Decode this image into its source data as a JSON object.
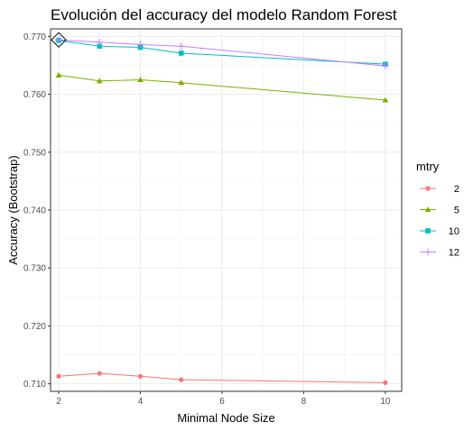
{
  "chart_data": {
    "type": "line",
    "title": "Evolución del accuracy del modelo Random Forest",
    "xlabel": "Minimal Node Size",
    "ylabel": "Accuracy (Bootstrap)",
    "xlim": [
      1.8,
      10.4
    ],
    "ylim": [
      0.7087,
      0.7713
    ],
    "x_ticks": [
      2,
      4,
      6,
      8,
      10
    ],
    "x_tick_labels": [
      "2",
      "4",
      "6",
      "8",
      "10"
    ],
    "y_ticks": [
      0.71,
      0.72,
      0.73,
      0.74,
      0.75,
      0.76,
      0.77
    ],
    "y_tick_labels": [
      "0.710",
      "0.720",
      "0.730",
      "0.740",
      "0.750",
      "0.760",
      "0.770"
    ],
    "grid": true,
    "legend_title": "mtry",
    "legend_position": "right",
    "series": [
      {
        "name": "2",
        "color": "#F8766D",
        "marker": "circle",
        "x": [
          2,
          3,
          4,
          5,
          10
        ],
        "y": [
          0.7113,
          0.7118,
          0.7113,
          0.7107,
          0.7102
        ]
      },
      {
        "name": "5",
        "color": "#7CAE00",
        "marker": "triangle",
        "x": [
          2,
          3,
          4,
          5,
          10
        ],
        "y": [
          0.7633,
          0.7623,
          0.7625,
          0.762,
          0.759
        ]
      },
      {
        "name": "10",
        "color": "#00BFC4",
        "marker": "square",
        "x": [
          2,
          3,
          4,
          5,
          10
        ],
        "y": [
          0.7693,
          0.7683,
          0.7681,
          0.7671,
          0.7652
        ]
      },
      {
        "name": "12",
        "color": "#C77CFF",
        "marker": "plus",
        "x": [
          2,
          3,
          4,
          5,
          10
        ],
        "y": [
          0.7694,
          0.769,
          0.7686,
          0.7683,
          0.7649
        ]
      }
    ],
    "highlight": {
      "x": 2,
      "y": 0.7694,
      "shape": "diamond"
    }
  }
}
